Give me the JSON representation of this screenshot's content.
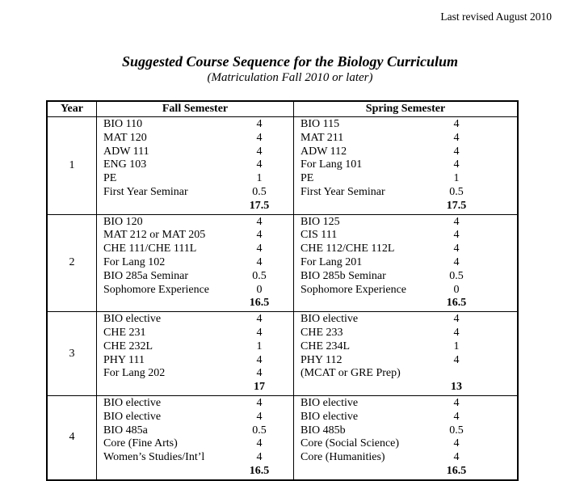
{
  "page": {
    "revision_note": "Last revised August 2010",
    "title": "Suggested Course Sequence for the Biology Curriculum",
    "subtitle": "(Matriculation Fall 2010 or later)"
  },
  "table": {
    "headers": {
      "year": "Year",
      "fall": "Fall Semester",
      "spring": "Spring Semester"
    },
    "years": [
      {
        "year": "1",
        "fall": {
          "courses": [
            {
              "name": "BIO 110",
              "credits": "4"
            },
            {
              "name": "MAT 120",
              "credits": "4"
            },
            {
              "name": "ADW 111",
              "credits": "4"
            },
            {
              "name": "ENG 103",
              "credits": "4"
            },
            {
              "name": "PE",
              "credits": "1"
            },
            {
              "name": "First Year Seminar",
              "credits": "0.5"
            }
          ],
          "total": "17.5"
        },
        "spring": {
          "courses": [
            {
              "name": "BIO 115",
              "credits": "4"
            },
            {
              "name": "MAT 211",
              "credits": "4"
            },
            {
              "name": "ADW 112",
              "credits": "4"
            },
            {
              "name": "For Lang 101",
              "credits": "4"
            },
            {
              "name": "PE",
              "credits": "1"
            },
            {
              "name": "First Year Seminar",
              "credits": "0.5"
            }
          ],
          "total": "17.5"
        }
      },
      {
        "year": "2",
        "fall": {
          "courses": [
            {
              "name": "BIO 120",
              "credits": "4"
            },
            {
              "name": "MAT 212 or MAT 205",
              "credits": "4"
            },
            {
              "name": "CHE 111/CHE 111L",
              "credits": "4"
            },
            {
              "name": "For Lang 102",
              "credits": "4"
            },
            {
              "name": "BIO 285a Seminar",
              "credits": "0.5"
            },
            {
              "name": "Sophomore Experience",
              "credits": "0"
            }
          ],
          "total": "16.5"
        },
        "spring": {
          "courses": [
            {
              "name": "BIO 125",
              "credits": "4"
            },
            {
              "name": "CIS 111",
              "credits": "4"
            },
            {
              "name": "CHE 112/CHE 112L",
              "credits": "4"
            },
            {
              "name": "For Lang 201",
              "credits": "4"
            },
            {
              "name": "BIO 285b Seminar",
              "credits": "0.5"
            },
            {
              "name": "Sophomore Experience",
              "credits": "0"
            }
          ],
          "total": "16.5"
        }
      },
      {
        "year": "3",
        "fall": {
          "courses": [
            {
              "name": "BIO elective",
              "credits": "4"
            },
            {
              "name": "CHE 231",
              "credits": "4"
            },
            {
              "name": "CHE 232L",
              "credits": "1"
            },
            {
              "name": "PHY 111",
              "credits": "4"
            },
            {
              "name": "For Lang 202",
              "credits": "4"
            }
          ],
          "total": "17"
        },
        "spring": {
          "courses": [
            {
              "name": "BIO elective",
              "credits": "4"
            },
            {
              "name": "CHE 233",
              "credits": "4"
            },
            {
              "name": "CHE 234L",
              "credits": "1"
            },
            {
              "name": "PHY 112",
              "credits": "4"
            },
            {
              "name": "(MCAT or GRE Prep)",
              "credits": ""
            }
          ],
          "total": "13"
        }
      },
      {
        "year": "4",
        "fall": {
          "courses": [
            {
              "name": "BIO elective",
              "credits": "4"
            },
            {
              "name": "BIO elective",
              "credits": "4"
            },
            {
              "name": "BIO 485a",
              "credits": "0.5"
            },
            {
              "name": "Core (Fine Arts)",
              "credits": "4"
            },
            {
              "name": "Women’s Studies/Int’l",
              "credits": "4"
            }
          ],
          "total": "16.5"
        },
        "spring": {
          "courses": [
            {
              "name": "BIO elective",
              "credits": "4"
            },
            {
              "name": "BIO elective",
              "credits": "4"
            },
            {
              "name": "BIO 485b",
              "credits": "0.5"
            },
            {
              "name": "Core (Social Science)",
              "credits": "4"
            },
            {
              "name": "Core (Humanities)",
              "credits": "4"
            }
          ],
          "total": "16.5"
        }
      }
    ]
  }
}
